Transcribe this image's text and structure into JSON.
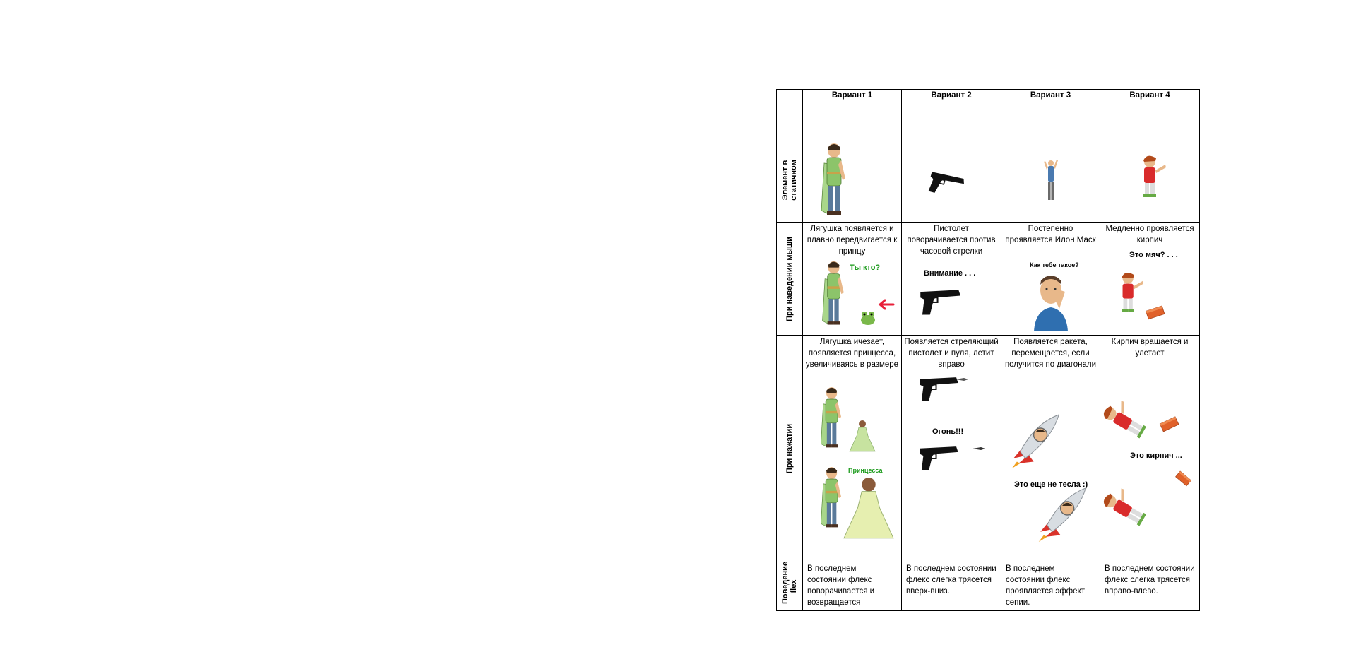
{
  "header": {
    "corner": "",
    "variants": [
      "Вариант 1",
      "Вариант 2",
      "Вариант 3",
      "Вариант 4"
    ]
  },
  "rows": {
    "static": {
      "label": "Элемент в статичном"
    },
    "hover": {
      "label": "При наведении мыши",
      "desc": [
        "Лягушка появляется и плавно передвигается к принцу",
        "Пистолет поворачивается против часовой стрелки",
        "Постепенно проявляется Илон Маск",
        "Медленно проявляется кирпич"
      ],
      "captions": [
        "Ты кто?",
        "Внимание . . .",
        "Как тебе такое?",
        "Это мяч? . . ."
      ]
    },
    "click": {
      "label": "При нажатии",
      "desc": [
        "Лягушка ичезает, появляется принцесса, увеличиваясь в размере",
        "Появляется стреляющий пистолет и пуля, летит вправо",
        "Появляется ракета, перемещается, если получится по диагонали",
        "Кирпич вращается и улетает"
      ],
      "captions": {
        "princess": "Принцесса",
        "fire": "Огонь!!!",
        "tesla": "Это еще не тесла :)",
        "brick": "Это кирпич ..."
      }
    },
    "flex": {
      "label": "Поведение flex",
      "notes": [
        "В последнем состоянии  флекс поворачивается и возвращается",
        "В последнем состоянии флекс слегка трясется вверх-вниз.",
        "В последнем состоянии флекс проявляется эффект сепии.",
        "В последнем состоянии флекс слегка трясется вправо-влево."
      ]
    }
  },
  "colors": {
    "prince": "#8cc46a",
    "skin": "#e8b88a",
    "red_shirt": "#d92b2b",
    "brick": "#e0612a",
    "rocket": "#d8dde2"
  },
  "icons": [
    "prince-icon",
    "pistol-icon",
    "man-icon",
    "boy-icon",
    "frog-icon",
    "arrow-icon",
    "elon-icon",
    "brick-icon",
    "princess-icon",
    "rocket-icon",
    "bullet-icon"
  ]
}
